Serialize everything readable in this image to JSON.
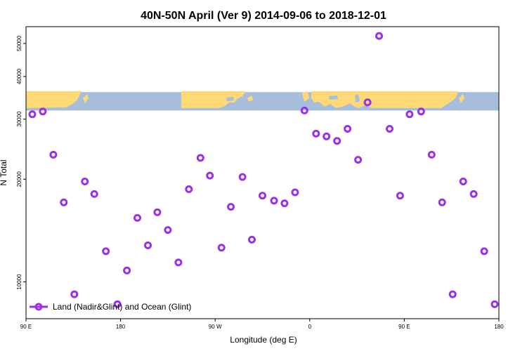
{
  "chart_data": {
    "type": "scatter",
    "title": "40N-50N April (Ver 9)   2014-09-06 to 2018-12-01",
    "xlabel": "Longitude (deg E)",
    "ylabel": "N Total",
    "x_ticks": [
      {
        "value": 90,
        "label": "90 E"
      },
      {
        "value": 180,
        "label": "180"
      },
      {
        "value": 270,
        "label": "90 W"
      },
      {
        "value": 360,
        "label": "0"
      },
      {
        "value": 450,
        "label": "90 E"
      },
      {
        "value": 540,
        "label": "180"
      }
    ],
    "y_scale": "log",
    "y_ticks": [
      10000,
      20000,
      30000,
      40000,
      50000
    ],
    "xlim": [
      90,
      540
    ],
    "ylim": [
      7800,
      56000
    ],
    "grid": false,
    "legend_position": "bottom-left",
    "map_band": {
      "y_top": 36000,
      "y_bottom": 31800,
      "ocean_color": "#a6bddb",
      "land_color": "#fed976"
    },
    "series": [
      {
        "name": "Land (Nadir&Glint) and Ocean (Glint)",
        "color": "#9b30e8",
        "marker": "circle",
        "x": [
          96,
          106,
          116,
          126,
          136,
          146,
          155,
          166,
          177,
          186,
          196,
          206,
          215,
          225,
          235,
          245,
          256,
          265,
          276,
          285,
          296,
          305,
          315,
          326,
          336,
          346,
          355,
          366,
          376,
          386,
          396,
          406,
          415,
          426,
          436,
          446,
          455,
          466,
          476,
          486,
          496,
          506,
          516,
          526,
          536
        ],
        "y": [
          31000,
          31600,
          23600,
          17100,
          9200,
          19700,
          18100,
          12300,
          8600,
          10800,
          15400,
          12800,
          16000,
          14200,
          11400,
          18700,
          23100,
          20500,
          12600,
          16600,
          20300,
          13300,
          17900,
          17300,
          17000,
          18300,
          31800,
          27200,
          26700,
          25900,
          28100,
          22800,
          33600,
          52600,
          28100,
          17900,
          31000,
          31600,
          23600,
          17100,
          9200,
          19700,
          18100,
          12300,
          8600
        ]
      }
    ]
  }
}
